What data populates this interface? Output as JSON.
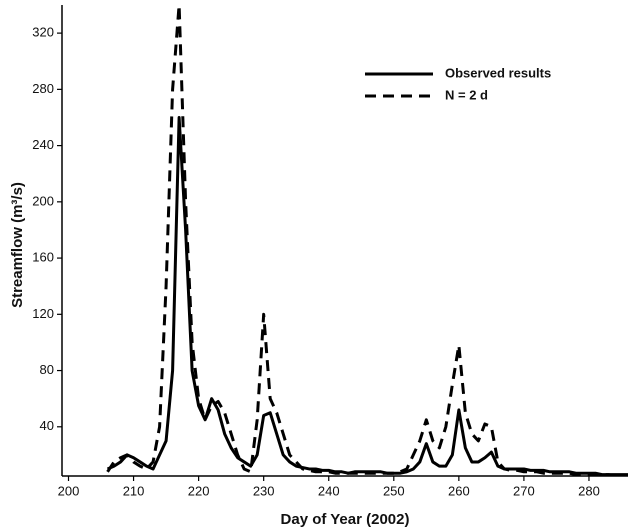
{
  "chart_data": {
    "type": "line",
    "xlabel": "Day of Year (2002)",
    "ylabel": "Streamflow (m³/s)",
    "x": [
      206,
      207,
      208,
      209,
      210,
      211,
      212,
      213,
      214,
      215,
      216,
      217,
      218,
      219,
      220,
      221,
      222,
      223,
      224,
      225,
      226,
      227,
      228,
      229,
      230,
      231,
      232,
      233,
      234,
      235,
      236,
      237,
      238,
      239,
      240,
      241,
      242,
      243,
      244,
      245,
      246,
      247,
      248,
      249,
      250,
      251,
      252,
      253,
      254,
      255,
      256,
      257,
      258,
      259,
      260,
      261,
      262,
      263,
      264,
      265,
      266,
      267,
      268,
      269,
      270,
      271,
      272,
      273,
      274,
      275,
      276,
      277,
      278,
      279,
      280,
      281,
      282,
      283,
      284,
      285,
      286
    ],
    "series": [
      {
        "name": "Observed results",
        "color": "#000000",
        "dash": false,
        "values": [
          10,
          12,
          15,
          20,
          18,
          15,
          12,
          10,
          20,
          30,
          80,
          260,
          180,
          80,
          55,
          45,
          60,
          52,
          35,
          25,
          18,
          15,
          12,
          20,
          48,
          50,
          35,
          20,
          15,
          12,
          11,
          10,
          10,
          9,
          9,
          8,
          8,
          7,
          8,
          8,
          8,
          8,
          8,
          7,
          7,
          7,
          8,
          10,
          15,
          28,
          15,
          12,
          12,
          20,
          52,
          25,
          15,
          15,
          18,
          22,
          12,
          10,
          10,
          10,
          10,
          9,
          9,
          9,
          8,
          8,
          8,
          8,
          7,
          7,
          7,
          7,
          6,
          6,
          6,
          6,
          6
        ]
      },
      {
        "name": "N = 2 d",
        "color": "#000000",
        "dash": true,
        "values": [
          8,
          15,
          18,
          20,
          15,
          12,
          10,
          15,
          40,
          140,
          280,
          340,
          200,
          100,
          60,
          45,
          55,
          58,
          50,
          35,
          20,
          10,
          8,
          45,
          120,
          60,
          50,
          35,
          20,
          15,
          10,
          9,
          8,
          8,
          8,
          7,
          7,
          7,
          7,
          7,
          7,
          7,
          7,
          7,
          7,
          8,
          10,
          20,
          30,
          45,
          30,
          25,
          40,
          70,
          98,
          50,
          35,
          30,
          42,
          40,
          15,
          10,
          9,
          9,
          8,
          8,
          8,
          7,
          7,
          7,
          7,
          7,
          6,
          6,
          6,
          6,
          6,
          6,
          5,
          5,
          5
        ]
      }
    ],
    "xlim": [
      199,
      286
    ],
    "ylim": [
      5,
      340
    ],
    "xticks": [
      200,
      210,
      220,
      230,
      240,
      250,
      260,
      270,
      280
    ],
    "yticks": [
      40,
      80,
      120,
      160,
      200,
      240,
      280,
      320
    ],
    "legend": "upper right"
  }
}
